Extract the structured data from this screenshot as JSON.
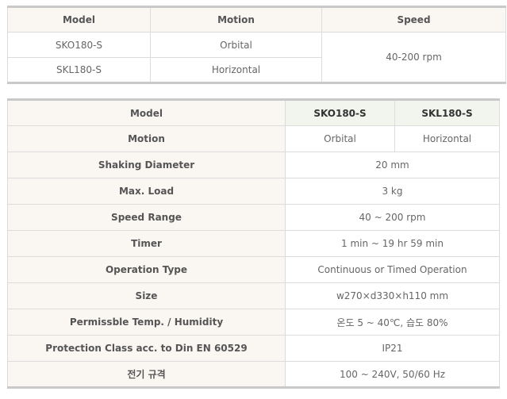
{
  "summary_table": {
    "headers": [
      "Model",
      "Motion",
      "Speed"
    ],
    "rows": [
      {
        "model": "SKO180-S",
        "motion": "Orbital"
      },
      {
        "model": "SKL180-S",
        "motion": "Horizontal"
      }
    ],
    "speed": "40-200 rpm"
  },
  "spec_table": {
    "model_label": "Model",
    "models": [
      "SKO180-S",
      "SKL180-S"
    ],
    "motion_label": "Motion",
    "motions": [
      "Orbital",
      "Horizontal"
    ],
    "rows": [
      {
        "label": "Shaking Diameter",
        "value": "20 mm"
      },
      {
        "label": "Max. Load",
        "value": "3 kg"
      },
      {
        "label": "Speed Range",
        "value": "40 ~ 200 rpm"
      },
      {
        "label": "Timer",
        "value": "1 min ~ 19 hr 59 min"
      },
      {
        "label": "Operation Type",
        "value": "Continuous or Timed Operation"
      },
      {
        "label": "Size",
        "value": "w270×d330×h110 mm"
      },
      {
        "label": "Permissble Temp. / Humidity",
        "value": "온도 5 ~ 40℃, 습도 80%"
      },
      {
        "label": "Protection Class acc. to Din EN 60529",
        "value": "IP21"
      },
      {
        "label": "전기 규격",
        "value": "100 ~ 240V, 50/60 Hz"
      }
    ]
  }
}
